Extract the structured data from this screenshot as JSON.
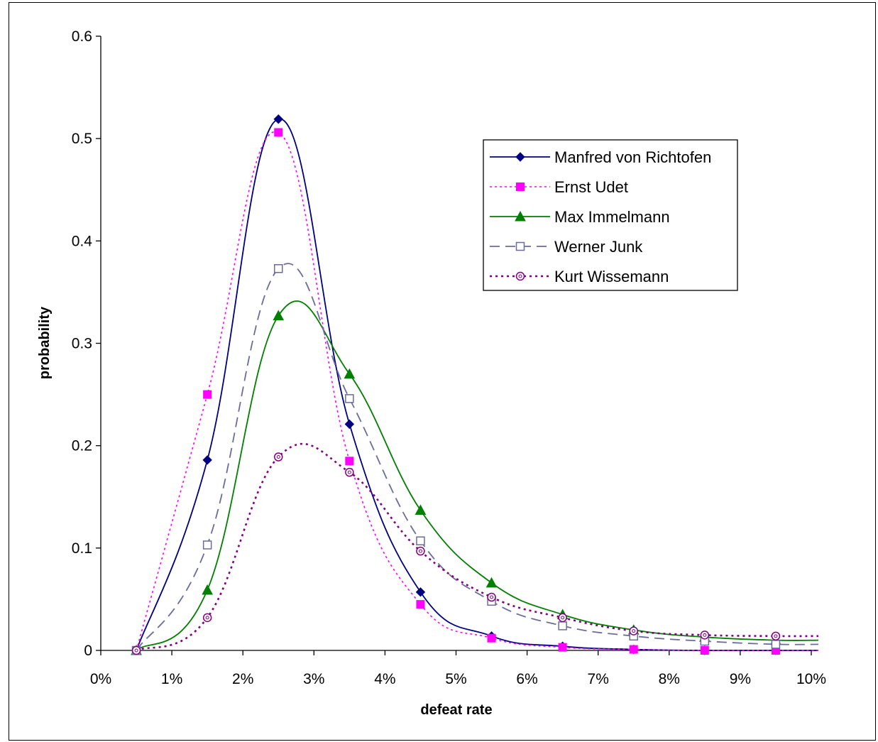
{
  "chart_data": {
    "type": "line",
    "xlabel": "defeat rate",
    "ylabel": "probability",
    "xlim": [
      0,
      0.1
    ],
    "ylim": [
      0,
      0.6
    ],
    "x_ticks": [
      0,
      0.01,
      0.02,
      0.03,
      0.04,
      0.05,
      0.06,
      0.07,
      0.08,
      0.09,
      0.1
    ],
    "x_tick_labels": [
      "0%",
      "1%",
      "2%",
      "3%",
      "4%",
      "5%",
      "6%",
      "7%",
      "8%",
      "9%",
      "10%"
    ],
    "y_ticks": [
      0,
      0.1,
      0.2,
      0.3,
      0.4,
      0.5,
      0.6
    ],
    "y_tick_labels": [
      "0",
      "0.1",
      "0.2",
      "0.3",
      "0.4",
      "0.5",
      "0.6"
    ],
    "x": [
      0.005,
      0.015,
      0.025,
      0.035,
      0.045,
      0.055,
      0.065,
      0.075,
      0.085,
      0.095
    ],
    "grid": false,
    "legend_position": "top-right",
    "series": [
      {
        "name": "Manfred von Richtofen",
        "color": "#000080",
        "marker": "diamond-filled",
        "dash": "solid",
        "values": [
          0.0,
          0.186,
          0.519,
          0.221,
          0.057,
          0.014,
          0.004,
          0.001,
          0.0,
          0.0
        ]
      },
      {
        "name": "Ernst Udet",
        "color": "#FF00FF",
        "marker": "square-filled",
        "dash": "dotted",
        "values": [
          0.0,
          0.25,
          0.506,
          0.185,
          0.045,
          0.012,
          0.003,
          0.001,
          0.0,
          0.0
        ]
      },
      {
        "name": "Max Immelmann",
        "color": "#008000",
        "marker": "triangle-filled",
        "dash": "solid",
        "values": [
          0.0,
          0.059,
          0.327,
          0.27,
          0.137,
          0.066,
          0.035,
          0.02,
          0.013,
          0.01
        ]
      },
      {
        "name": "Werner Junk",
        "color": "#6C6C9C",
        "marker": "square-open",
        "dash": "dashed",
        "values": [
          0.0,
          0.103,
          0.373,
          0.246,
          0.107,
          0.048,
          0.024,
          0.014,
          0.009,
          0.006
        ]
      },
      {
        "name": "Kurt Wissemann",
        "color": "#800080",
        "marker": "circle-open",
        "dash": "dotted-bold",
        "values": [
          0.0,
          0.032,
          0.189,
          0.174,
          0.097,
          0.052,
          0.032,
          0.019,
          0.015,
          0.014
        ]
      }
    ]
  }
}
